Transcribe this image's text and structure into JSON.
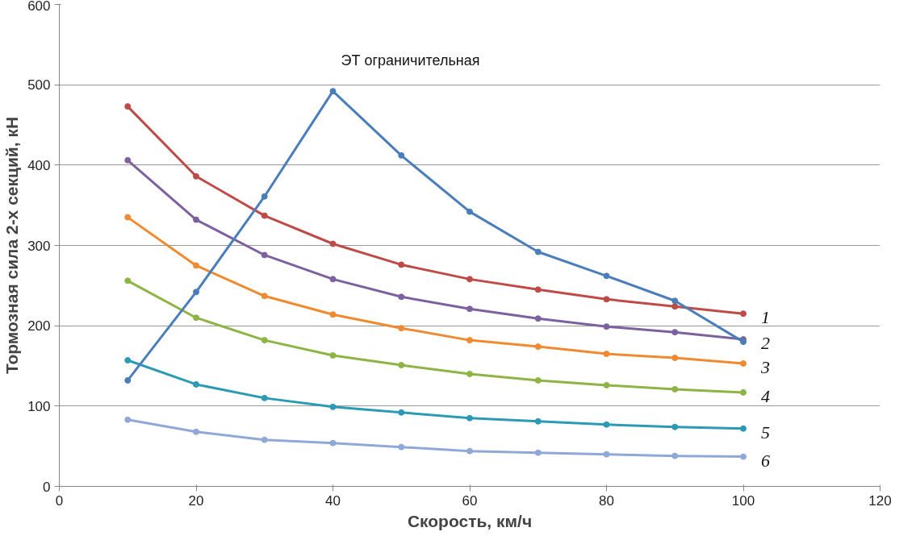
{
  "chart_data": {
    "type": "line",
    "xlabel": "Скорость, км/ч",
    "ylabel": "Тормозная сила 2-х секций, кН",
    "x": [
      10,
      20,
      30,
      40,
      50,
      60,
      70,
      80,
      90,
      100
    ],
    "xlim": [
      0,
      120
    ],
    "xticks": [
      0,
      20,
      40,
      60,
      80,
      100,
      120
    ],
    "ylim": [
      0,
      600
    ],
    "yticks": [
      0,
      100,
      200,
      300,
      400,
      500,
      600
    ],
    "grid": "y",
    "marker": "circle",
    "line_style": "solid",
    "series": [
      {
        "name": "ЭТ ограничительная",
        "color": "#4a7ebb",
        "values": [
          132,
          242,
          361,
          492,
          412,
          342,
          292,
          262,
          231,
          180
        ]
      },
      {
        "name": "1",
        "color": "#be4b48",
        "values": [
          473,
          386,
          337,
          302,
          276,
          258,
          245,
          233,
          224,
          215
        ]
      },
      {
        "name": "2",
        "color": "#7d60a0",
        "values": [
          406,
          332,
          288,
          258,
          236,
          221,
          209,
          199,
          192,
          183
        ]
      },
      {
        "name": "3",
        "color": "#f08a30",
        "values": [
          335,
          275,
          237,
          214,
          197,
          182,
          174,
          165,
          160,
          153
        ]
      },
      {
        "name": "4",
        "color": "#8db444",
        "values": [
          256,
          210,
          182,
          163,
          151,
          140,
          132,
          126,
          121,
          117
        ]
      },
      {
        "name": "5",
        "color": "#2c9ab4",
        "values": [
          157,
          127,
          110,
          99,
          92,
          85,
          81,
          77,
          74,
          72
        ]
      },
      {
        "name": "6",
        "color": "#8fa8d8",
        "values": [
          83,
          68,
          58,
          54,
          49,
          44,
          42,
          40,
          38,
          37
        ]
      }
    ]
  }
}
